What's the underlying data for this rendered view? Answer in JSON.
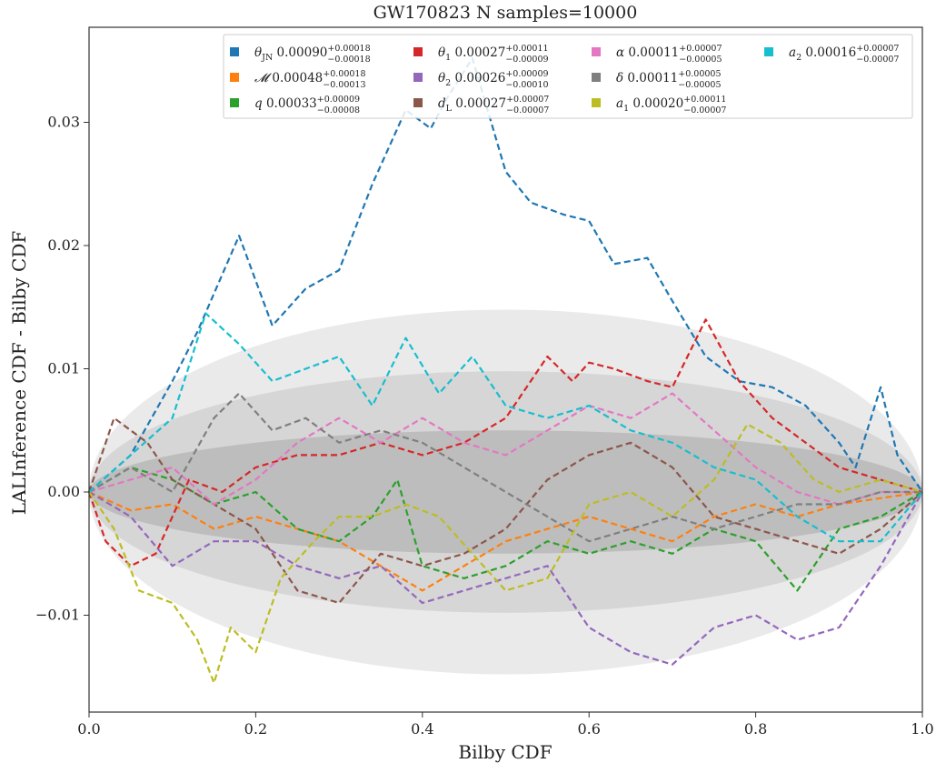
{
  "chart_data": {
    "type": "line",
    "title": "GW170823 N samples=10000",
    "xlabel": "Bilby CDF",
    "ylabel": "LALInference CDF - Bilby CDF",
    "xlim": [
      0.0,
      1.0
    ],
    "ylim": [
      -0.018,
      0.038
    ],
    "x_ticks": [
      0.0,
      0.2,
      0.4,
      0.6,
      0.8,
      1.0
    ],
    "x_tick_labels": [
      "0.0",
      "0.2",
      "0.4",
      "0.6",
      "0.8",
      "1.0"
    ],
    "y_ticks": [
      -0.01,
      0.0,
      0.01,
      0.02,
      0.03
    ],
    "y_tick_labels": [
      "−0.01",
      "0.00",
      "0.01",
      "0.02",
      "0.03"
    ],
    "grid": false,
    "legend_position": "top-right",
    "confidence_bands": [
      {
        "level": "outer",
        "max_half_width": 0.0148,
        "color": "#d9d9d9"
      },
      {
        "level": "middle",
        "max_half_width": 0.0098,
        "color": "#c4c4c4"
      },
      {
        "level": "inner",
        "max_half_width": 0.005,
        "color": "#a9a9a9"
      }
    ],
    "series": [
      {
        "name": "θJN",
        "legend_symbol": "θ",
        "legend_sub": "JN",
        "legend_value": "0.00090",
        "legend_plus": "+0.00018",
        "legend_minus": "−0.00018",
        "color": "#1f77b4",
        "x": [
          0.0,
          0.05,
          0.1,
          0.13,
          0.18,
          0.22,
          0.26,
          0.3,
          0.34,
          0.38,
          0.41,
          0.43,
          0.46,
          0.5,
          0.53,
          0.57,
          0.6,
          0.63,
          0.67,
          0.7,
          0.74,
          0.78,
          0.82,
          0.86,
          0.9,
          0.92,
          0.95,
          0.97,
          1.0
        ],
        "y": [
          0.0,
          0.003,
          0.009,
          0.013,
          0.0208,
          0.0135,
          0.0165,
          0.018,
          0.025,
          0.031,
          0.0295,
          0.032,
          0.0352,
          0.026,
          0.0235,
          0.0225,
          0.022,
          0.0185,
          0.019,
          0.0155,
          0.011,
          0.009,
          0.0085,
          0.007,
          0.004,
          0.002,
          0.0085,
          0.003,
          0.0
        ]
      },
      {
        "name": "𝓜",
        "legend_symbol": "𝓜",
        "legend_sub": "",
        "legend_value": "0.00048",
        "legend_plus": "+0.00018",
        "legend_minus": "−0.00013",
        "color": "#ff7f0e",
        "x": [
          0.0,
          0.05,
          0.1,
          0.15,
          0.2,
          0.25,
          0.3,
          0.35,
          0.4,
          0.45,
          0.5,
          0.55,
          0.6,
          0.65,
          0.7,
          0.75,
          0.8,
          0.85,
          0.9,
          0.95,
          1.0
        ],
        "y": [
          0.0,
          -0.0015,
          -0.001,
          -0.003,
          -0.002,
          -0.003,
          -0.004,
          -0.006,
          -0.008,
          -0.006,
          -0.004,
          -0.003,
          -0.002,
          -0.003,
          -0.004,
          -0.002,
          -0.001,
          -0.002,
          -0.001,
          -0.0005,
          0.0
        ]
      },
      {
        "name": "q",
        "legend_symbol": "q",
        "legend_sub": "",
        "legend_value": "0.00033",
        "legend_plus": "+0.00009",
        "legend_minus": "−0.00008",
        "color": "#2ca02c",
        "x": [
          0.0,
          0.05,
          0.1,
          0.15,
          0.2,
          0.25,
          0.3,
          0.34,
          0.37,
          0.4,
          0.45,
          0.5,
          0.55,
          0.6,
          0.65,
          0.7,
          0.75,
          0.8,
          0.85,
          0.9,
          0.95,
          1.0
        ],
        "y": [
          0.0,
          0.002,
          0.001,
          -0.001,
          0.0,
          -0.003,
          -0.004,
          -0.002,
          0.001,
          -0.006,
          -0.007,
          -0.006,
          -0.004,
          -0.005,
          -0.004,
          -0.005,
          -0.003,
          -0.004,
          -0.008,
          -0.003,
          -0.002,
          0.0
        ]
      },
      {
        "name": "θ1",
        "legend_symbol": "θ",
        "legend_sub": "1",
        "legend_value": "0.00027",
        "legend_plus": "+0.00011",
        "legend_minus": "−0.00009",
        "color": "#d62728",
        "x": [
          0.0,
          0.02,
          0.05,
          0.08,
          0.12,
          0.16,
          0.2,
          0.25,
          0.3,
          0.35,
          0.4,
          0.45,
          0.5,
          0.55,
          0.58,
          0.6,
          0.63,
          0.67,
          0.7,
          0.74,
          0.78,
          0.82,
          0.86,
          0.9,
          0.95,
          1.0
        ],
        "y": [
          0.0,
          -0.004,
          -0.006,
          -0.005,
          0.001,
          0.0,
          0.002,
          0.003,
          0.003,
          0.004,
          0.003,
          0.004,
          0.006,
          0.011,
          0.009,
          0.0105,
          0.01,
          0.009,
          0.0085,
          0.014,
          0.009,
          0.006,
          0.004,
          0.002,
          0.001,
          0.0
        ]
      },
      {
        "name": "θ2",
        "legend_symbol": "θ",
        "legend_sub": "2",
        "legend_value": "0.00026",
        "legend_plus": "+0.00009",
        "legend_minus": "−0.00010",
        "color": "#9467bd",
        "x": [
          0.0,
          0.05,
          0.1,
          0.15,
          0.2,
          0.25,
          0.3,
          0.35,
          0.4,
          0.45,
          0.5,
          0.55,
          0.6,
          0.65,
          0.7,
          0.75,
          0.8,
          0.85,
          0.9,
          0.95,
          1.0
        ],
        "y": [
          0.0,
          -0.002,
          -0.006,
          -0.004,
          -0.004,
          -0.006,
          -0.007,
          -0.006,
          -0.009,
          -0.008,
          -0.007,
          -0.006,
          -0.011,
          -0.013,
          -0.014,
          -0.011,
          -0.01,
          -0.012,
          -0.011,
          -0.006,
          0.0
        ]
      },
      {
        "name": "dL",
        "legend_symbol": "d",
        "legend_sub": "L",
        "legend_value": "0.00027",
        "legend_plus": "+0.00007",
        "legend_minus": "−0.00007",
        "color": "#8c564b",
        "x": [
          0.0,
          0.03,
          0.07,
          0.1,
          0.15,
          0.2,
          0.25,
          0.3,
          0.35,
          0.4,
          0.45,
          0.5,
          0.55,
          0.6,
          0.65,
          0.7,
          0.75,
          0.8,
          0.85,
          0.9,
          0.95,
          1.0
        ],
        "y": [
          0.0,
          0.006,
          0.004,
          0.001,
          -0.001,
          -0.003,
          -0.008,
          -0.009,
          -0.005,
          -0.006,
          -0.005,
          -0.003,
          0.001,
          0.003,
          0.004,
          0.002,
          -0.002,
          -0.003,
          -0.004,
          -0.005,
          -0.003,
          0.0
        ]
      },
      {
        "name": "α",
        "legend_symbol": "α",
        "legend_sub": "",
        "legend_value": "0.00011",
        "legend_plus": "+0.00007",
        "legend_minus": "−0.00005",
        "color": "#e377c2",
        "x": [
          0.0,
          0.05,
          0.1,
          0.15,
          0.2,
          0.25,
          0.3,
          0.35,
          0.4,
          0.45,
          0.5,
          0.55,
          0.6,
          0.65,
          0.7,
          0.75,
          0.8,
          0.85,
          0.9,
          0.95,
          1.0
        ],
        "y": [
          0.0,
          0.001,
          0.002,
          -0.001,
          0.001,
          0.004,
          0.006,
          0.004,
          0.006,
          0.004,
          0.003,
          0.005,
          0.007,
          0.006,
          0.008,
          0.005,
          0.002,
          0.0,
          -0.001,
          0.0,
          0.0
        ]
      },
      {
        "name": "δ",
        "legend_symbol": "δ",
        "legend_sub": "",
        "legend_value": "0.00011",
        "legend_plus": "+0.00005",
        "legend_minus": "−0.00005",
        "color": "#7f7f7f",
        "x": [
          0.0,
          0.05,
          0.1,
          0.15,
          0.18,
          0.22,
          0.26,
          0.3,
          0.35,
          0.4,
          0.45,
          0.5,
          0.55,
          0.6,
          0.65,
          0.7,
          0.75,
          0.8,
          0.85,
          0.9,
          0.95,
          1.0
        ],
        "y": [
          0.0,
          0.002,
          0.0,
          0.006,
          0.008,
          0.005,
          0.006,
          0.004,
          0.005,
          0.004,
          0.002,
          0.0,
          -0.002,
          -0.004,
          -0.003,
          -0.002,
          -0.003,
          -0.002,
          -0.001,
          -0.001,
          0.0,
          0.0
        ]
      },
      {
        "name": "a1",
        "legend_symbol": "a",
        "legend_sub": "1",
        "legend_value": "0.00020",
        "legend_plus": "+0.00011",
        "legend_minus": "−0.00007",
        "color": "#bcbd22",
        "x": [
          0.0,
          0.03,
          0.06,
          0.1,
          0.13,
          0.15,
          0.17,
          0.2,
          0.23,
          0.27,
          0.3,
          0.34,
          0.38,
          0.42,
          0.46,
          0.5,
          0.55,
          0.6,
          0.65,
          0.7,
          0.75,
          0.79,
          0.83,
          0.87,
          0.9,
          0.95,
          1.0
        ],
        "y": [
          0.0,
          -0.003,
          -0.008,
          -0.009,
          -0.012,
          -0.0155,
          -0.011,
          -0.013,
          -0.007,
          -0.004,
          -0.002,
          -0.002,
          -0.001,
          -0.002,
          -0.005,
          -0.008,
          -0.007,
          -0.001,
          0.0,
          -0.002,
          0.001,
          0.0055,
          0.004,
          0.001,
          0.0,
          0.001,
          0.0
        ]
      },
      {
        "name": "a2",
        "legend_symbol": "a",
        "legend_sub": "2",
        "legend_value": "0.00016",
        "legend_plus": "+0.00007",
        "legend_minus": "−0.00007",
        "color": "#17becf",
        "x": [
          0.0,
          0.05,
          0.1,
          0.14,
          0.18,
          0.22,
          0.26,
          0.3,
          0.34,
          0.38,
          0.42,
          0.46,
          0.5,
          0.55,
          0.6,
          0.65,
          0.7,
          0.75,
          0.8,
          0.85,
          0.9,
          0.95,
          1.0
        ],
        "y": [
          0.0,
          0.003,
          0.006,
          0.0145,
          0.012,
          0.009,
          0.01,
          0.011,
          0.007,
          0.0125,
          0.008,
          0.011,
          0.007,
          0.006,
          0.007,
          0.005,
          0.004,
          0.002,
          0.001,
          -0.002,
          -0.004,
          -0.004,
          0.0
        ]
      }
    ]
  }
}
